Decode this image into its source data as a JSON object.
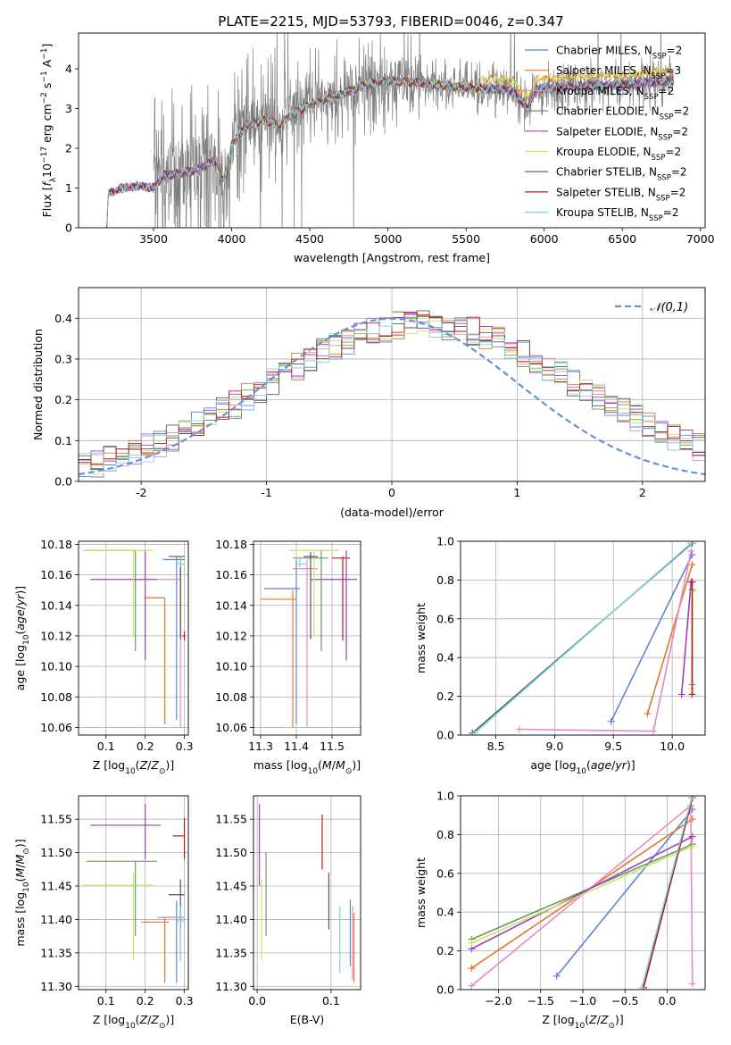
{
  "figure_title": "PLATE=2215, MJD=53793, FIBERID=0046, z=0.347",
  "colors": {
    "Chabrier MILES": "#5b87d4",
    "Salpeter MILES": "#e1782b",
    "Kroupa MILES": "#e889c4",
    "Chabrier ELODIE": "#6a9a5a",
    "Salpeter ELODIE": "#a23fbf",
    "Kroupa ELODIE": "#c8e36a",
    "Chabrier STELIB": "#555555",
    "Salpeter STELIB": "#b81c1c",
    "Kroupa STELIB": "#7fd3df",
    "data": "#7f7f7f",
    "normal": "#6a8fd8"
  },
  "chart_data": [
    {
      "id": "spectrum",
      "type": "line",
      "title": "PLATE=2215, MJD=53793, FIBERID=0046, z=0.347",
      "xlabel": "wavelength [Angstrom, rest frame]",
      "ylabel": "Flux [f_λ 10^-17 erg cm^-2 s^-1 A^-1]",
      "xlim": [
        3020,
        7030
      ],
      "ylim": [
        0,
        4.9
      ],
      "xticks": [
        3500,
        4000,
        4500,
        5000,
        5500,
        6000,
        6500,
        7000
      ],
      "yticks": [
        0,
        1,
        2,
        3,
        4
      ],
      "grid": false,
      "legend_position": "top-right",
      "legend": [
        {
          "name": "Chabrier MILES",
          "nssp": "2"
        },
        {
          "name": "Salpeter MILES",
          "nssp": "3"
        },
        {
          "name": "Kroupa MILES",
          "nssp": "2"
        },
        {
          "name": "Chabrier ELODIE",
          "nssp": "2"
        },
        {
          "name": "Salpeter ELODIE",
          "nssp": "2"
        },
        {
          "name": "Kroupa ELODIE",
          "nssp": "2"
        },
        {
          "name": "Chabrier STELIB",
          "nssp": "2"
        },
        {
          "name": "Salpeter STELIB",
          "nssp": "2"
        },
        {
          "name": "Kroupa STELIB",
          "nssp": "2"
        }
      ],
      "continuum_points": [
        [
          3200,
          0.0
        ],
        [
          3210,
          0.85
        ],
        [
          3300,
          1.0
        ],
        [
          3400,
          1.05
        ],
        [
          3500,
          1.0
        ],
        [
          3560,
          1.3
        ],
        [
          3700,
          1.4
        ],
        [
          3800,
          1.5
        ],
        [
          3900,
          1.7
        ],
        [
          3935,
          1.2
        ],
        [
          3970,
          1.4
        ],
        [
          4000,
          2.1
        ],
        [
          4100,
          2.6
        ],
        [
          4200,
          2.7
        ],
        [
          4300,
          2.6
        ],
        [
          4400,
          2.9
        ],
        [
          4500,
          3.1
        ],
        [
          4700,
          3.35
        ],
        [
          4850,
          3.6
        ],
        [
          5000,
          3.7
        ],
        [
          5200,
          3.65
        ],
        [
          5400,
          3.55
        ],
        [
          5600,
          3.5
        ],
        [
          5800,
          3.45
        ],
        [
          5890,
          3.0
        ],
        [
          5950,
          3.5
        ],
        [
          6200,
          3.55
        ],
        [
          6500,
          3.6
        ],
        [
          6700,
          3.65
        ],
        [
          6830,
          3.7
        ]
      ],
      "data_range": [
        3500,
        6830
      ]
    },
    {
      "id": "residuals",
      "type": "area",
      "xlabel": "(data-model)/error",
      "ylabel": "Normed distribution",
      "xlim": [
        -2.5,
        2.5
      ],
      "ylim": [
        0,
        0.475
      ],
      "xticks": [
        -2,
        -1,
        0,
        1,
        2
      ],
      "yticks": [
        0.0,
        0.1,
        0.2,
        0.3,
        0.4
      ],
      "grid": true,
      "legend_position": "top-right",
      "legend": [
        "𝒩(0,1)"
      ],
      "bin_width": 0.1,
      "bin_start": -2.5
    },
    {
      "id": "age_vs_Z",
      "type": "scatter",
      "xlabel": "Z [log10(Z/Z⊙)]",
      "ylabel": "age [log10(age/yr)]",
      "xlim": [
        0.03,
        0.31
      ],
      "ylim": [
        10.055,
        10.182
      ],
      "xticks": [
        0.1,
        0.2,
        0.3
      ],
      "yticks": [
        10.06,
        10.08,
        10.1,
        10.12,
        10.14,
        10.16,
        10.18
      ],
      "grid": true,
      "points": [
        {
          "series": "Chabrier MILES",
          "x": 0.28,
          "y": 10.17,
          "x_lo": 0.245,
          "x_hi": 0.3,
          "y_lo": 10.065,
          "y_hi": 10.172
        },
        {
          "series": "Salpeter MILES",
          "x": 0.25,
          "y": 10.145,
          "x_lo": 0.2,
          "x_hi": 0.25,
          "y_lo": 10.062,
          "y_hi": 10.145
        },
        {
          "series": "Kroupa MILES",
          "x": 0.29,
          "y": 10.157,
          "x_lo": 0.23,
          "x_hi": 0.29,
          "y_lo": 10.06,
          "y_hi": 10.172
        },
        {
          "series": "Chabrier ELODIE",
          "x": 0.175,
          "y": 10.176,
          "x_lo": 0.05,
          "x_hi": 0.175,
          "y_lo": 10.11,
          "y_hi": 10.176
        },
        {
          "series": "Salpeter ELODIE",
          "x": 0.2,
          "y": 10.157,
          "x_lo": 0.06,
          "x_hi": 0.23,
          "y_lo": 10.104,
          "y_hi": 10.176
        },
        {
          "series": "Kroupa ELODIE",
          "x": 0.17,
          "y": 10.176,
          "x_lo": 0.04,
          "x_hi": 0.22,
          "y_lo": 10.12,
          "y_hi": 10.176
        },
        {
          "series": "Chabrier STELIB",
          "x": 0.29,
          "y": 10.172,
          "x_lo": 0.26,
          "x_hi": 0.3,
          "y_lo": 10.118,
          "y_hi": 10.172
        },
        {
          "series": "Salpeter STELIB",
          "x": 0.3,
          "y": 10.12,
          "x_lo": 0.295,
          "x_hi": 0.3,
          "y_lo": 10.117,
          "y_hi": 10.123
        },
        {
          "series": "Kroupa STELIB",
          "x": 0.29,
          "y": 10.167,
          "x_lo": 0.28,
          "x_hi": 0.3,
          "y_lo": 10.165,
          "y_hi": 10.172
        }
      ]
    },
    {
      "id": "age_vs_mass",
      "type": "scatter",
      "xlabel": "mass [log10(M/M⊙)]",
      "ylabel": "",
      "xlim": [
        11.28,
        11.58
      ],
      "ylim": [
        10.055,
        10.182
      ],
      "xticks": [
        11.3,
        11.4,
        11.5
      ],
      "yticks": [
        10.06,
        10.08,
        10.1,
        10.12,
        10.14,
        10.16,
        10.18
      ],
      "grid": true,
      "points": [
        {
          "series": "Chabrier MILES",
          "x": 11.4,
          "y": 10.151,
          "x_lo": 11.31,
          "x_hi": 11.41,
          "y_lo": 10.062,
          "y_hi": 10.17
        },
        {
          "series": "Salpeter MILES",
          "x": 11.39,
          "y": 10.144,
          "x_lo": 11.3,
          "x_hi": 11.4,
          "y_lo": 10.06,
          "y_hi": 10.15
        },
        {
          "series": "Kroupa MILES",
          "x": 11.43,
          "y": 10.164,
          "x_lo": 11.39,
          "x_hi": 11.46,
          "y_lo": 10.06,
          "y_hi": 10.17
        },
        {
          "series": "Chabrier ELODIE",
          "x": 11.47,
          "y": 10.171,
          "x_lo": 11.39,
          "x_hi": 11.49,
          "y_lo": 10.11,
          "y_hi": 10.176
        },
        {
          "series": "Salpeter ELODIE",
          "x": 11.54,
          "y": 10.157,
          "x_lo": 11.44,
          "x_hi": 11.57,
          "y_lo": 10.104,
          "y_hi": 10.176
        },
        {
          "series": "Kroupa ELODIE",
          "x": 11.45,
          "y": 10.176,
          "x_lo": 11.38,
          "x_hi": 11.52,
          "y_lo": 10.12,
          "y_hi": 10.176
        },
        {
          "series": "Chabrier STELIB",
          "x": 11.44,
          "y": 10.172,
          "x_lo": 11.42,
          "x_hi": 11.46,
          "y_lo": 10.118,
          "y_hi": 10.175
        },
        {
          "series": "Salpeter STELIB",
          "x": 11.53,
          "y": 10.171,
          "x_lo": 11.5,
          "x_hi": 11.55,
          "y_lo": 10.117,
          "y_hi": 10.172
        },
        {
          "series": "Kroupa STELIB",
          "x": 11.41,
          "y": 10.167,
          "x_lo": 11.4,
          "x_hi": 11.43,
          "y_lo": 10.165,
          "y_hi": 10.172
        }
      ]
    },
    {
      "id": "weight_vs_age",
      "type": "line",
      "xlabel": "age [log10(age/yr)]",
      "ylabel": "mass weight",
      "xlim": [
        8.2,
        10.28
      ],
      "ylim": [
        0,
        1
      ],
      "xticks": [
        8.5,
        9.0,
        9.5,
        10.0
      ],
      "yticks": [
        0.0,
        0.2,
        0.4,
        0.6,
        0.8,
        1.0
      ],
      "grid": true,
      "series": [
        {
          "name": "Chabrier MILES",
          "x": [
            9.48,
            10.17
          ],
          "y": [
            0.07,
            0.93
          ]
        },
        {
          "name": "Salpeter MILES",
          "x": [
            9.79,
            10.17
          ],
          "y": [
            0.11,
            0.88
          ]
        },
        {
          "name": "Kroupa MILES",
          "x": [
            8.7,
            9.84,
            10.16
          ],
          "y": [
            0.03,
            0.02,
            0.95
          ]
        },
        {
          "name": "Chabrier ELODIE",
          "x": [
            10.17,
            10.17
          ],
          "y": [
            0.26,
            0.75
          ]
        },
        {
          "name": "Salpeter ELODIE",
          "x": [
            10.08,
            10.16
          ],
          "y": [
            0.21,
            0.79
          ]
        },
        {
          "name": "Kroupa ELODIE",
          "x": [
            10.17,
            10.17
          ],
          "y": [
            0.24,
            0.74
          ]
        },
        {
          "name": "Chabrier STELIB",
          "x": [
            8.3,
            10.17
          ],
          "y": [
            0.01,
            0.99
          ]
        },
        {
          "name": "Salpeter STELIB",
          "x": [
            10.17,
            10.17
          ],
          "y": [
            0.21,
            0.79
          ]
        },
        {
          "name": "Kroupa STELIB",
          "x": [
            8.32,
            10.16
          ],
          "y": [
            0.01,
            0.99
          ]
        }
      ]
    },
    {
      "id": "mass_vs_Z",
      "type": "scatter",
      "xlabel": "Z [log10(Z/Z⊙)]",
      "ylabel": "mass [log10(M/M⊙)]",
      "xlim": [
        0.03,
        0.31
      ],
      "ylim": [
        11.295,
        11.585
      ],
      "xticks": [
        0.1,
        0.2,
        0.3
      ],
      "yticks": [
        11.3,
        11.35,
        11.4,
        11.45,
        11.5,
        11.55
      ],
      "grid": true,
      "points": [
        {
          "series": "Chabrier MILES",
          "x": 0.28,
          "y": 11.403,
          "x_lo": 0.24,
          "x_hi": 0.3,
          "y_lo": 11.305,
          "y_hi": 11.428
        },
        {
          "series": "Salpeter MILES",
          "x": 0.25,
          "y": 11.396,
          "x_lo": 0.19,
          "x_hi": 0.26,
          "y_lo": 11.305,
          "y_hi": 11.402
        },
        {
          "series": "Kroupa MILES",
          "x": 0.29,
          "y": 11.403,
          "x_lo": 0.23,
          "x_hi": 0.3,
          "y_lo": 11.338,
          "y_hi": 11.42
        },
        {
          "series": "Chabrier ELODIE",
          "x": 0.175,
          "y": 11.487,
          "x_lo": 0.05,
          "x_hi": 0.23,
          "y_lo": 11.375,
          "y_hi": 11.487
        },
        {
          "series": "Salpeter ELODIE",
          "x": 0.2,
          "y": 11.541,
          "x_lo": 0.06,
          "x_hi": 0.24,
          "y_lo": 11.49,
          "y_hi": 11.573
        },
        {
          "series": "Kroupa ELODIE",
          "x": 0.17,
          "y": 11.451,
          "x_lo": 0.04,
          "x_hi": 0.22,
          "y_lo": 11.34,
          "y_hi": 11.47
        },
        {
          "series": "Chabrier STELIB",
          "x": 0.29,
          "y": 11.437,
          "x_lo": 0.26,
          "x_hi": 0.3,
          "y_lo": 11.385,
          "y_hi": 11.46
        },
        {
          "series": "Salpeter STELIB",
          "x": 0.3,
          "y": 11.525,
          "x_lo": 0.27,
          "x_hi": 0.3,
          "y_lo": 11.49,
          "y_hi": 11.552
        },
        {
          "series": "Kroupa STELIB",
          "x": 0.29,
          "y": 11.398,
          "x_lo": 0.28,
          "x_hi": 0.3,
          "y_lo": 11.34,
          "y_hi": 11.42
        }
      ]
    },
    {
      "id": "mass_vs_EBV",
      "type": "scatter",
      "xlabel": "E(B-V)",
      "ylabel": "",
      "xlim": [
        -0.005,
        0.14
      ],
      "ylim": [
        11.295,
        11.585
      ],
      "xticks": [
        0.0,
        0.1
      ],
      "yticks": [
        11.3,
        11.35,
        11.4,
        11.45,
        11.5,
        11.55
      ],
      "grid": true,
      "points": [
        {
          "series": "Chabrier MILES",
          "x": 0.126,
          "y": 11.38,
          "x_lo": 0.126,
          "x_hi": 0.126,
          "y_lo": 11.33,
          "y_hi": 11.43
        },
        {
          "series": "Salpeter MILES",
          "x": 0.131,
          "y": 11.36,
          "x_lo": 0.131,
          "x_hi": 0.131,
          "y_lo": 11.305,
          "y_hi": 11.41
        },
        {
          "series": "Kroupa MILES",
          "x": 0.129,
          "y": 11.39,
          "x_lo": 0.129,
          "x_hi": 0.129,
          "y_lo": 11.31,
          "y_hi": 11.42
        },
        {
          "series": "Chabrier ELODIE",
          "x": 0.012,
          "y": 11.44,
          "x_lo": 0.012,
          "x_hi": 0.012,
          "y_lo": 11.375,
          "y_hi": 11.5
        },
        {
          "series": "Salpeter ELODIE",
          "x": 0.003,
          "y": 11.52,
          "x_lo": 0.003,
          "x_hi": 0.003,
          "y_lo": 11.45,
          "y_hi": 11.573
        },
        {
          "series": "Kroupa ELODIE",
          "x": 0.006,
          "y": 11.4,
          "x_lo": 0.006,
          "x_hi": 0.006,
          "y_lo": 11.34,
          "y_hi": 11.46
        },
        {
          "series": "Chabrier STELIB",
          "x": 0.097,
          "y": 11.42,
          "x_lo": 0.097,
          "x_hi": 0.097,
          "y_lo": 11.385,
          "y_hi": 11.47
        },
        {
          "series": "Salpeter STELIB",
          "x": 0.088,
          "y": 11.52,
          "x_lo": 0.088,
          "x_hi": 0.088,
          "y_lo": 11.475,
          "y_hi": 11.557
        },
        {
          "series": "Kroupa STELIB",
          "x": 0.112,
          "y": 11.37,
          "x_lo": 0.112,
          "x_hi": 0.112,
          "y_lo": 11.32,
          "y_hi": 11.42
        }
      ]
    },
    {
      "id": "weight_vs_Z",
      "type": "line",
      "xlabel": "Z [log10(Z/Z⊙)]",
      "ylabel": "mass weight",
      "xlim": [
        -2.45,
        0.45
      ],
      "ylim": [
        0,
        1
      ],
      "xticks": [
        -2.0,
        -1.5,
        -1.0,
        -0.5,
        0.0
      ],
      "yticks": [
        0.0,
        0.2,
        0.4,
        0.6,
        0.8,
        1.0
      ],
      "grid": true,
      "series": [
        {
          "name": "Chabrier MILES",
          "x": [
            -1.31,
            0.3
          ],
          "y": [
            0.07,
            0.93
          ]
        },
        {
          "name": "Salpeter MILES",
          "x": [
            -2.32,
            0.3
          ],
          "y": [
            0.11,
            0.88
          ]
        },
        {
          "name": "Kroupa MILES",
          "x": [
            -2.32,
            0.28,
            0.3
          ],
          "y": [
            0.02,
            0.95,
            0.03
          ]
        },
        {
          "name": "Chabrier ELODIE",
          "x": [
            -2.32,
            0.3
          ],
          "y": [
            0.26,
            0.75
          ]
        },
        {
          "name": "Salpeter ELODIE",
          "x": [
            -2.32,
            0.3
          ],
          "y": [
            0.21,
            0.79
          ]
        },
        {
          "name": "Kroupa ELODIE",
          "x": [
            -2.32,
            0.3
          ],
          "y": [
            0.24,
            0.74
          ]
        },
        {
          "name": "Chabrier STELIB",
          "x": [
            -0.28,
            0.3
          ],
          "y": [
            0.01,
            0.99
          ]
        },
        {
          "name": "Salpeter STELIB",
          "x": [
            -0.28,
            0.3
          ],
          "y": [
            0.01,
            0.99
          ]
        },
        {
          "name": "Kroupa STELIB",
          "x": [
            -0.3,
            0.29
          ],
          "y": [
            0.01,
            0.99
          ]
        }
      ]
    }
  ]
}
